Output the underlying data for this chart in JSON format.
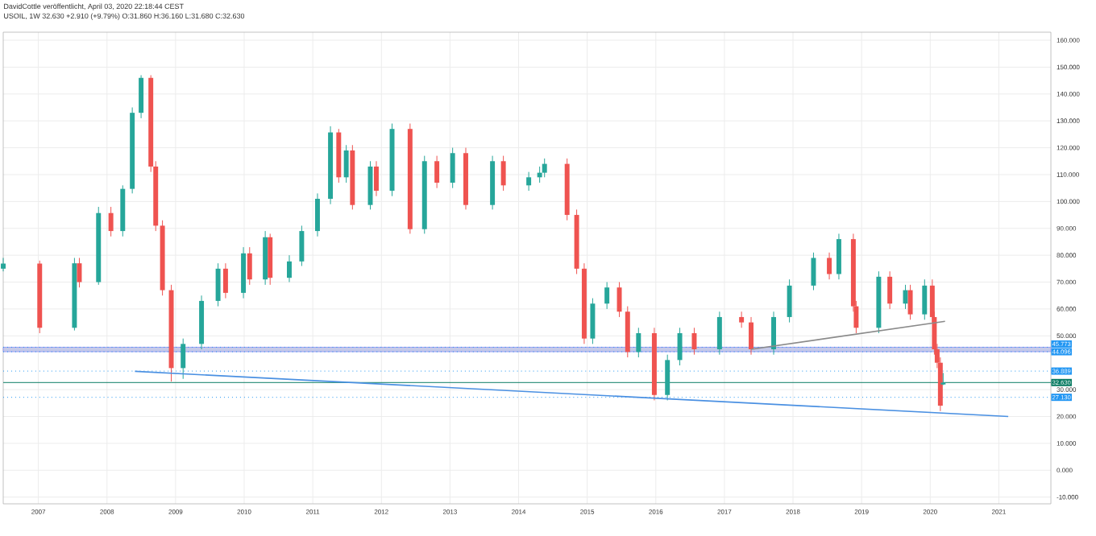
{
  "chart_data": {
    "type": "candlestick",
    "title": "DavidCottle veröffentlicht, April 03, 2020 22:18:44 CEST",
    "subtitle": "USOIL, 1W 32.630 +2.910 (+9.79%) O:31.860 H:36.160 L:31.680 C:32.630",
    "series": [
      {
        "x": [
          "2006-06-28",
          "2007-01-08",
          "2007-07-12",
          "2007-08-07",
          "2007-11-17",
          "2008-01-22",
          "2008-03-25",
          "2008-05-15",
          "2008-07-01",
          "2008-08-22",
          "2008-09-17",
          "2008-10-23",
          "2008-12-09",
          "2009-02-10",
          "2009-05-19",
          "2009-08-15",
          "2009-09-24",
          "2009-12-28",
          "2010-01-30",
          "2010-04-23",
          "2010-05-19",
          "2010-08-29",
          "2010-11-03",
          "2011-01-26",
          "2011-04-05",
          "2011-05-19",
          "2011-06-28",
          "2011-07-31",
          "2011-11-03",
          "2011-12-05",
          "2012-02-27",
          "2012-06-02",
          "2012-08-18",
          "2012-10-23",
          "2013-01-15",
          "2013-03-26",
          "2013-08-15",
          "2013-10-12",
          "2014-02-24",
          "2014-04-23",
          "2014-05-19",
          "2014-09-16",
          "2014-11-06",
          "2014-12-16",
          "2015-01-30",
          "2015-04-16",
          "2015-06-21",
          "2015-08-04",
          "2015-10-01",
          "2015-12-24",
          "2016-03-03",
          "2016-05-08",
          "2016-07-24",
          "2016-12-06",
          "2017-04-02",
          "2017-05-23",
          "2017-09-20",
          "2017-12-13",
          "2018-04-20",
          "2018-07-13",
          "2018-09-02",
          "2018-11-18",
          "2018-12-03",
          "2019-04-02",
          "2019-05-31",
          "2019-08-22",
          "2019-09-17",
          "2019-12-02",
          "2020-01-12",
          "2020-01-23",
          "2020-02-07",
          "2020-02-24",
          "2020-03-10"
        ],
        "ohlc": [
          [
            75,
            79,
            74,
            76.9
          ],
          [
            76.9,
            78,
            51,
            53
          ],
          [
            53,
            79,
            52,
            77
          ],
          [
            77,
            79,
            68,
            70
          ],
          [
            70,
            98,
            69,
            95.7
          ],
          [
            95.7,
            98,
            87,
            89
          ],
          [
            89,
            106,
            87,
            104.7
          ],
          [
            104.7,
            135,
            103,
            133
          ],
          [
            133,
            147,
            131,
            146
          ],
          [
            146,
            147,
            111,
            113
          ],
          [
            113,
            115,
            89,
            91
          ],
          [
            91,
            93,
            65,
            67
          ],
          [
            67,
            69,
            33,
            38
          ],
          [
            38,
            49,
            34,
            47
          ],
          [
            47,
            65,
            45,
            63
          ],
          [
            63,
            77,
            61,
            75
          ],
          [
            75,
            77,
            64,
            66
          ],
          [
            66,
            83,
            64,
            80.7
          ],
          [
            80.7,
            83,
            69,
            71
          ],
          [
            71,
            89,
            69,
            86.7
          ],
          [
            86.7,
            88,
            69,
            71.6
          ],
          [
            71.6,
            80,
            70,
            77.7
          ],
          [
            77.7,
            91,
            76,
            89
          ],
          [
            89,
            103,
            87,
            101
          ],
          [
            101,
            128,
            99,
            125.7
          ],
          [
            125.7,
            127,
            107,
            109
          ],
          [
            109,
            121,
            107,
            119
          ],
          [
            119,
            121,
            97,
            98.7
          ],
          [
            98.7,
            115,
            97,
            113
          ],
          [
            113,
            115,
            102,
            104
          ],
          [
            104,
            129,
            102,
            127
          ],
          [
            127,
            129,
            88,
            89.7
          ],
          [
            89.7,
            117,
            88,
            115
          ],
          [
            115,
            117,
            105,
            107
          ],
          [
            107,
            120,
            105,
            118
          ],
          [
            118,
            120,
            97,
            98.7
          ],
          [
            98.7,
            117,
            97,
            115
          ],
          [
            115,
            117,
            104,
            106
          ],
          [
            106,
            111,
            104,
            109
          ],
          [
            109,
            113,
            107,
            110.7
          ],
          [
            110.7,
            116,
            109,
            114
          ],
          [
            114,
            116,
            93,
            95
          ],
          [
            95,
            97,
            73,
            75
          ],
          [
            75,
            77,
            47,
            49
          ],
          [
            49,
            64,
            47,
            62
          ],
          [
            62,
            70,
            60,
            68
          ],
          [
            68,
            70,
            57,
            59
          ],
          [
            59,
            61,
            42,
            44
          ],
          [
            44,
            53,
            42,
            51
          ],
          [
            51,
            53,
            26,
            28
          ],
          [
            28,
            43,
            26,
            41
          ],
          [
            41,
            53,
            39,
            51
          ],
          [
            51,
            53,
            43,
            45
          ],
          [
            45,
            59,
            43,
            57
          ],
          [
            57,
            59,
            53,
            55
          ],
          [
            55,
            57,
            43,
            45
          ],
          [
            45,
            59,
            43,
            57
          ],
          [
            57,
            71,
            55,
            68.7
          ],
          [
            68.7,
            81,
            67,
            79
          ],
          [
            79,
            81,
            71,
            73
          ],
          [
            73,
            88,
            71,
            86
          ],
          [
            86,
            88,
            59,
            61
          ],
          [
            61,
            63,
            51,
            53
          ],
          [
            53,
            74,
            51,
            72
          ],
          [
            72,
            74,
            60,
            62
          ],
          [
            62,
            69,
            60,
            67
          ],
          [
            67,
            69,
            56,
            58
          ],
          [
            58,
            71,
            56,
            68.7
          ],
          [
            68.7,
            71,
            55,
            57
          ],
          [
            57,
            59,
            43,
            45
          ],
          [
            45,
            47,
            38,
            40
          ],
          [
            40,
            42,
            22,
            24
          ],
          [
            31.9,
            36.2,
            31.7,
            32.6
          ]
        ]
      },
      {
        "type": "line",
        "x": [
          "2008-05-29",
          "2021-02-20"
        ],
        "values": [
          36.8,
          20
        ],
        "color": "#4a90e2"
      },
      {
        "type": "line",
        "x": [
          "2017-05-23",
          "2020-03-20"
        ],
        "values": [
          45,
          55.4
        ],
        "color": "#8a8a8a"
      }
    ],
    "xlim": [
      "2006-06-28",
      "2021-10-05"
    ],
    "ylim": [
      -12.5,
      163
    ],
    "xticks": [
      "2007",
      "2008",
      "2009",
      "2010",
      "2011",
      "2012",
      "2013",
      "2014",
      "2015",
      "2016",
      "2017",
      "2018",
      "2019",
      "2020",
      "2021"
    ],
    "yticks": [
      {
        "value": -10,
        "label": "-10.000"
      },
      {
        "value": 0,
        "label": "0.000"
      },
      {
        "value": 10,
        "label": "10.000"
      },
      {
        "value": 20,
        "label": "20.000"
      },
      {
        "value": 30,
        "label": "30.000"
      },
      {
        "value": 50,
        "label": "50.000"
      },
      {
        "value": 60,
        "label": "60.000"
      },
      {
        "value": 70,
        "label": "70.000"
      },
      {
        "value": 80,
        "label": "80.000"
      },
      {
        "value": 90,
        "label": "90.000"
      },
      {
        "value": 100,
        "label": "100.000"
      },
      {
        "value": 110,
        "label": "110.000"
      },
      {
        "value": 120,
        "label": "120.000"
      },
      {
        "value": 130,
        "label": "130.000"
      },
      {
        "value": 140,
        "label": "140.000"
      },
      {
        "value": 150,
        "label": "150.000"
      },
      {
        "value": 160,
        "label": "160.000"
      }
    ],
    "ref_lines": [
      {
        "axis": "y",
        "value": 45.773,
        "label": "45.773",
        "color": "#2196f3",
        "line_style": "dotted"
      },
      {
        "axis": "y",
        "value": 44.096,
        "label": "44.096",
        "color": "#2196f3",
        "line_style": "dotted"
      },
      {
        "axis": "y",
        "value": 36.889,
        "label": "36.889",
        "color": "#2196f3",
        "line_style": "dotted"
      },
      {
        "axis": "y",
        "value": 32.63,
        "label": "32.630",
        "color": "#0b7c63",
        "line_style": "solid"
      },
      {
        "axis": "y",
        "value": 27.13,
        "label": "27.130",
        "color": "#2196f3",
        "line_style": "dotted"
      }
    ],
    "bands": [
      {
        "axis": "y",
        "from": 44.096,
        "to": 45.773,
        "color": "#c5cae9"
      }
    ],
    "grid": true
  }
}
